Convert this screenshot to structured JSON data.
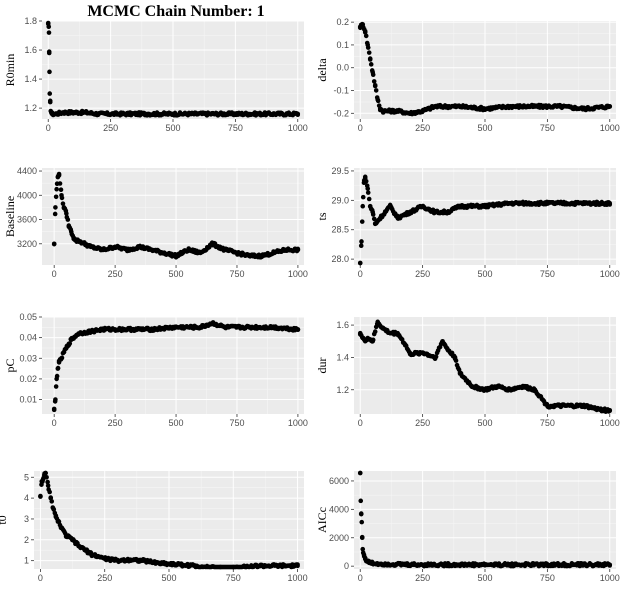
{
  "title": "MCMC Chain Number: 1",
  "chart_data": [
    {
      "type": "scatter",
      "ylabel": "R0min",
      "xlim": [
        -25,
        1025
      ],
      "ylim": [
        1.125,
        1.8
      ],
      "xticks": [
        0,
        250,
        500,
        750,
        1000
      ],
      "yticks": [
        1.2,
        1.4,
        1.6,
        1.8
      ],
      "ytick_labels": [
        "1.2",
        "1.4",
        "1.6",
        "1.8"
      ],
      "x": [
        0,
        2,
        3,
        4,
        5,
        6,
        8,
        10,
        15,
        30,
        60,
        100,
        150,
        200,
        300,
        400,
        500,
        600,
        700,
        800,
        900,
        1000
      ],
      "y": [
        1.78,
        1.76,
        1.72,
        1.58,
        1.45,
        1.3,
        1.25,
        1.18,
        1.16,
        1.16,
        1.17,
        1.17,
        1.17,
        1.16,
        1.16,
        1.16,
        1.16,
        1.16,
        1.16,
        1.16,
        1.16,
        1.16
      ]
    },
    {
      "type": "scatter",
      "ylabel": "delta",
      "xlim": [
        -25,
        1025
      ],
      "ylim": [
        -0.225,
        0.205
      ],
      "xticks": [
        0,
        250,
        500,
        750,
        1000
      ],
      "yticks": [
        -0.2,
        -0.1,
        0.0,
        0.1,
        0.2
      ],
      "ytick_labels": [
        "-0.2",
        "-0.1",
        "0.0",
        "0.1",
        "0.2"
      ],
      "x": [
        0,
        10,
        20,
        30,
        40,
        50,
        60,
        70,
        80,
        90,
        100,
        150,
        200,
        250,
        300,
        400,
        500,
        600,
        700,
        800,
        900,
        1000
      ],
      "y": [
        0.18,
        0.19,
        0.16,
        0.1,
        0.04,
        -0.02,
        -0.08,
        -0.14,
        -0.18,
        -0.19,
        -0.19,
        -0.19,
        -0.2,
        -0.19,
        -0.17,
        -0.17,
        -0.18,
        -0.17,
        -0.17,
        -0.17,
        -0.18,
        -0.17
      ]
    },
    {
      "type": "scatter",
      "ylabel": "Baseline",
      "xlim": [
        -50,
        1025
      ],
      "ylim": [
        2850,
        4450
      ],
      "xticks": [
        0,
        250,
        500,
        750,
        1000
      ],
      "yticks": [
        3200,
        3600,
        4000,
        4400
      ],
      "ytick_labels": [
        "3200",
        "3600",
        "4000",
        "4400"
      ],
      "x": [
        0,
        5,
        10,
        15,
        20,
        30,
        40,
        50,
        60,
        70,
        80,
        90,
        100,
        125,
        150,
        200,
        250,
        300,
        350,
        400,
        450,
        500,
        550,
        600,
        650,
        700,
        750,
        800,
        850,
        900,
        950,
        1000
      ],
      "y": [
        3200,
        3800,
        4100,
        4300,
        4350,
        4000,
        3800,
        3700,
        3500,
        3400,
        3300,
        3250,
        3250,
        3200,
        3150,
        3100,
        3150,
        3100,
        3150,
        3100,
        3050,
        3000,
        3100,
        3050,
        3200,
        3100,
        3050,
        3000,
        3000,
        3050,
        3100,
        3100
      ]
    },
    {
      "type": "scatter",
      "ylabel": "ts",
      "xlim": [
        -25,
        1025
      ],
      "ylim": [
        27.9,
        29.55
      ],
      "xticks": [
        0,
        250,
        500,
        750,
        1000
      ],
      "yticks": [
        28.0,
        28.5,
        29.0,
        29.5
      ],
      "ytick_labels": [
        "28.0",
        "28.5",
        "29.0",
        "29.5"
      ],
      "x": [
        0,
        5,
        10,
        15,
        20,
        30,
        40,
        50,
        60,
        80,
        100,
        120,
        150,
        200,
        250,
        300,
        350,
        400,
        450,
        500,
        600,
        700,
        800,
        900,
        1000
      ],
      "y": [
        27.9,
        28.3,
        28.9,
        29.3,
        29.4,
        29.2,
        28.9,
        28.8,
        28.6,
        28.7,
        28.8,
        28.9,
        28.7,
        28.8,
        28.9,
        28.8,
        28.8,
        28.9,
        28.9,
        28.9,
        28.95,
        28.95,
        28.95,
        28.95,
        28.95
      ]
    },
    {
      "type": "scatter",
      "ylabel": "pC",
      "xlim": [
        -50,
        1025
      ],
      "ylim": [
        0.003,
        0.05
      ],
      "xticks": [
        0,
        250,
        500,
        750,
        1000
      ],
      "yticks": [
        0.01,
        0.02,
        0.03,
        0.04,
        0.05
      ],
      "ytick_labels": [
        "0.01",
        "0.02",
        "0.03",
        "0.04",
        "0.05"
      ],
      "x": [
        0,
        5,
        10,
        15,
        20,
        30,
        40,
        50,
        60,
        70,
        80,
        90,
        100,
        150,
        200,
        250,
        300,
        400,
        500,
        600,
        650,
        700,
        800,
        900,
        1000
      ],
      "y": [
        0.005,
        0.01,
        0.02,
        0.025,
        0.028,
        0.03,
        0.033,
        0.035,
        0.037,
        0.039,
        0.04,
        0.041,
        0.042,
        0.043,
        0.044,
        0.044,
        0.044,
        0.044,
        0.045,
        0.045,
        0.047,
        0.045,
        0.045,
        0.045,
        0.044
      ]
    },
    {
      "type": "scatter",
      "ylabel": "dur",
      "xlim": [
        -25,
        1025
      ],
      "ylim": [
        1.05,
        1.65
      ],
      "xticks": [
        0,
        250,
        500,
        750,
        1000
      ],
      "yticks": [
        1.2,
        1.4,
        1.6
      ],
      "ytick_labels": [
        "1.2",
        "1.4",
        "1.6"
      ],
      "x": [
        0,
        10,
        20,
        30,
        50,
        70,
        90,
        120,
        150,
        180,
        200,
        250,
        300,
        330,
        350,
        380,
        400,
        450,
        500,
        550,
        600,
        650,
        700,
        750,
        800,
        850,
        900,
        950,
        1000
      ],
      "y": [
        1.55,
        1.52,
        1.5,
        1.52,
        1.5,
        1.62,
        1.58,
        1.55,
        1.55,
        1.48,
        1.42,
        1.43,
        1.4,
        1.5,
        1.45,
        1.4,
        1.3,
        1.22,
        1.2,
        1.22,
        1.2,
        1.22,
        1.2,
        1.1,
        1.1,
        1.1,
        1.1,
        1.08,
        1.07
      ]
    },
    {
      "type": "scatter",
      "ylabel": "t0",
      "xlim": [
        -25,
        1025
      ],
      "ylim": [
        0.6,
        5.3
      ],
      "xticks": [
        0,
        250,
        500,
        750,
        1000
      ],
      "yticks": [
        1,
        2,
        3,
        4,
        5
      ],
      "ytick_labels": [
        "1",
        "2",
        "3",
        "4",
        "5"
      ],
      "x": [
        0,
        5,
        10,
        15,
        20,
        30,
        40,
        50,
        60,
        70,
        80,
        100,
        125,
        150,
        175,
        200,
        250,
        300,
        350,
        400,
        450,
        500,
        550,
        600,
        650,
        700,
        750,
        800,
        850,
        900,
        950,
        1000
      ],
      "y": [
        4.1,
        4.8,
        4.9,
        5.1,
        5.2,
        4.6,
        4.0,
        3.5,
        3.1,
        2.9,
        2.6,
        2.2,
        2.0,
        1.7,
        1.5,
        1.3,
        1.1,
        1.0,
        1.05,
        1.0,
        0.9,
        0.85,
        0.8,
        0.75,
        0.7,
        0.6,
        0.65,
        0.7,
        0.75,
        0.75,
        0.75,
        0.75
      ]
    },
    {
      "type": "scatter",
      "ylabel": "AICc",
      "xlim": [
        -25,
        1025
      ],
      "ylim": [
        -200,
        6700
      ],
      "xticks": [
        0,
        250,
        500,
        750,
        1000
      ],
      "yticks": [
        0,
        2000,
        4000,
        6000
      ],
      "ytick_labels": [
        "0",
        "2000",
        "4000",
        "6000"
      ],
      "x": [
        0,
        2,
        4,
        6,
        8,
        10,
        15,
        20,
        30,
        50,
        100,
        200,
        400,
        600,
        800,
        1000
      ],
      "y": [
        6700,
        4600,
        3700,
        3100,
        2000,
        1200,
        800,
        500,
        300,
        200,
        150,
        100,
        100,
        100,
        100,
        100
      ]
    }
  ]
}
